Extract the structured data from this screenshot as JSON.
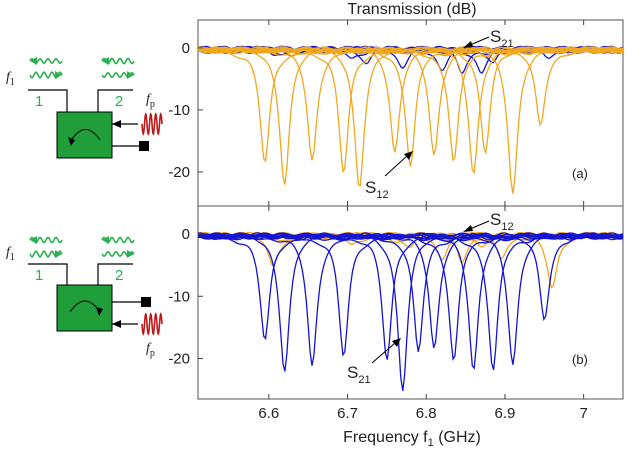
{
  "figure": {
    "title": "Transmission (dB)",
    "xlabel_main": "Frequency f",
    "xlabel_sub": "1",
    "xlabel_unit": " (GHz)",
    "xticks": [
      "6.6",
      "6.7",
      "6.8",
      "6.9",
      "7"
    ],
    "yticks": [
      "0",
      "-10",
      "-20"
    ],
    "colors": {
      "s12": "#f0a820",
      "s21": "#1414d2",
      "box": "#1f9e3a",
      "signal": "#2ab04e",
      "pump": "#c01818"
    }
  },
  "panels": [
    {
      "label": "(a)",
      "annotations": [
        {
          "main": "S",
          "sub": "21"
        },
        {
          "main": "S",
          "sub": "12"
        }
      ],
      "schematic": {
        "port1": "1",
        "port2": "2",
        "f_signal": "f",
        "f_signal_sub": "1",
        "f_pump": "f",
        "f_pump_sub": "p"
      }
    },
    {
      "label": "(b)",
      "annotations": [
        {
          "main": "S",
          "sub": "12"
        },
        {
          "main": "S",
          "sub": "21"
        }
      ],
      "schematic": {
        "port1": "1",
        "port2": "2",
        "f_signal": "f",
        "f_signal_sub": "1",
        "f_pump": "f",
        "f_pump_sub": "p"
      }
    }
  ],
  "chart_data": [
    {
      "type": "line",
      "panel": "(a)",
      "title": "Transmission (dB)",
      "xlim": [
        6.51,
        7.05
      ],
      "ylim": [
        -25.5,
        4.5
      ],
      "dip_centers_ghz": [
        6.595,
        6.62,
        6.655,
        6.695,
        6.715,
        6.76,
        6.78,
        6.81,
        6.835,
        6.86,
        6.875,
        6.91,
        6.945
      ],
      "dip_depths_db": [
        -18.5,
        -21.5,
        -18,
        -20,
        -22,
        -16.5,
        -19,
        -17,
        -18.5,
        -20,
        -16.5,
        -23,
        -12.5
      ],
      "series": [
        {
          "name": "S12",
          "color": "#f0a820",
          "description_values": "deep dips at dip_centers_ghz"
        },
        {
          "name": "S21",
          "color": "#1414d2",
          "baseline_db": -0.5,
          "small_dip_depths_db": [
            -1,
            -1.2,
            -1.5,
            -2,
            -2.5,
            -3,
            -4,
            -3.5,
            -2.5,
            -1
          ]
        }
      ]
    },
    {
      "type": "line",
      "panel": "(b)",
      "xlim": [
        6.51,
        7.05
      ],
      "ylim": [
        -26.5,
        4.5
      ],
      "dip_centers_ghz": [
        6.595,
        6.62,
        6.655,
        6.695,
        6.75,
        6.77,
        6.79,
        6.81,
        6.835,
        6.86,
        6.885,
        6.91,
        6.95
      ],
      "dip_depths_db": [
        -17,
        -21.5,
        -21,
        -19.5,
        -20,
        -24.5,
        -19,
        -18,
        -20.5,
        -21.5,
        -22,
        -20.5,
        -13.5
      ],
      "series": [
        {
          "name": "S21",
          "color": "#1414d2",
          "description_values": "deep dips at dip_centers_ghz"
        },
        {
          "name": "S12",
          "color": "#f0a820",
          "baseline_db": -0.5,
          "small_dip_depths_db": [
            -5,
            -1,
            -1.5,
            -1,
            -2,
            -3.5,
            -4.5,
            -1.5,
            -4,
            -8
          ]
        }
      ]
    }
  ]
}
